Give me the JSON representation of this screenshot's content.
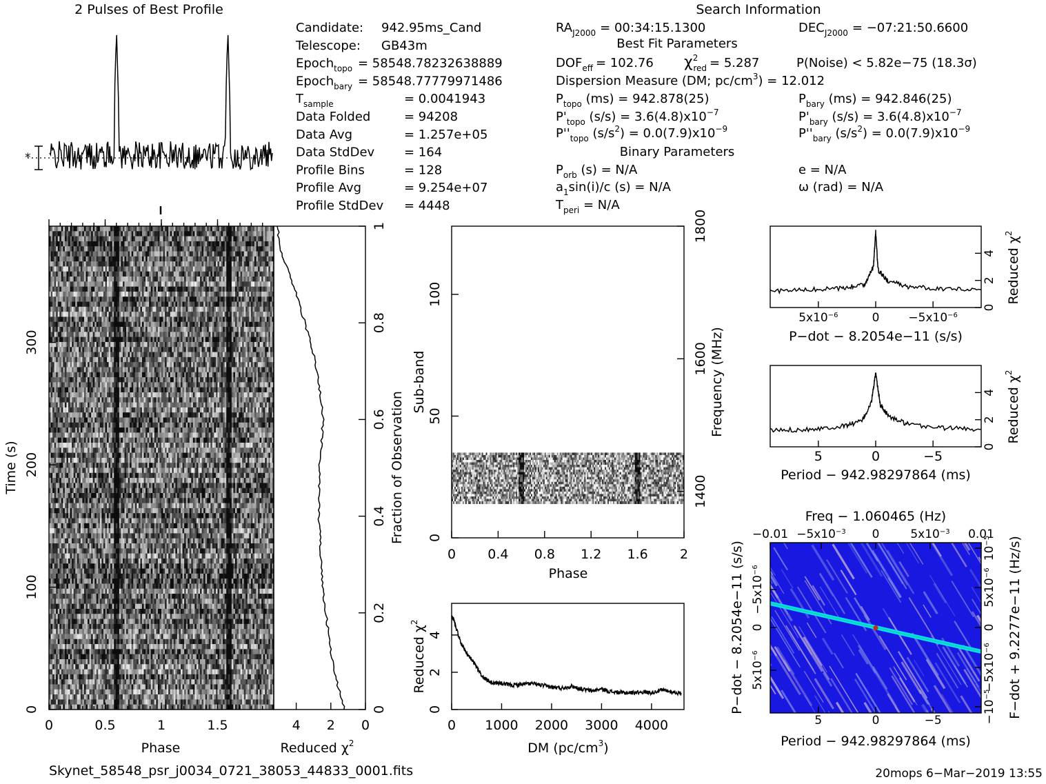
{
  "profile_panel": {
    "title": "2 Pulses of Best Profile",
    "marker_label": "*",
    "chart_data": {
      "type": "line",
      "xlabel": "",
      "ylabel": "",
      "xlim": [
        0,
        2
      ],
      "pulse_phases": [
        0.6,
        1.6
      ],
      "baseline_level": 0.0,
      "peak_level": 1.0
    }
  },
  "candidate_info": {
    "rows": [
      {
        "label": "Candidate:",
        "value": "942.95ms_Cand"
      },
      {
        "label": "Telescope:",
        "value": "GB43m"
      },
      {
        "label": "Epoch",
        "sub": "topo",
        "value": "= 58548.78232638889"
      },
      {
        "label": "Epoch",
        "sub": "bary",
        "value": "= 58548.77779971486"
      },
      {
        "label": "T",
        "sub": "sample",
        "value": "=   0.0041943"
      },
      {
        "label": "Data Folded",
        "value": "=   94208"
      },
      {
        "label": "Data Avg",
        "value": "=   1.257e+05"
      },
      {
        "label": "Data StdDev",
        "value": "=   164"
      },
      {
        "label": "Profile Bins",
        "value": "=   128"
      },
      {
        "label": "Profile Avg",
        "value": "=   9.254e+07"
      },
      {
        "label": "Profile StdDev",
        "value": "=   4448"
      }
    ]
  },
  "search_info": {
    "title": "Search Information",
    "ra": {
      "label": "RA",
      "sub": "J2000",
      "value": "= 00:34:15.1300"
    },
    "dec": {
      "label": "DEC",
      "sub": "J2000",
      "value": "= −07:21:50.6600"
    },
    "best_fit_title": "Best Fit Parameters",
    "dof": {
      "label": "DOF",
      "sub": "eff",
      "value": "= 102.76"
    },
    "chi2": {
      "label": "χ",
      "sup": "2",
      "sub": "red",
      "value": "= 5.287"
    },
    "pnoise": "P(Noise) < 5.82e−75   (18.3σ)",
    "dm": "Dispersion Measure (DM; pc/cm",
    "dm_sup": "3",
    "dm_value": ") = 12.012",
    "p_topo": {
      "label": "P",
      "sub": "topo",
      "value": " (ms) =   942.878(25)"
    },
    "p_bary": {
      "label": "P",
      "sub": "bary",
      "value": " (ms) =   942.846(25)"
    },
    "pd_topo": {
      "label": "P'",
      "sub": "topo",
      "value": " (s/s) =   3.6(4.8)x10",
      "exp": "−7"
    },
    "pd_bary": {
      "label": "P'",
      "sub": "bary",
      "value": " (s/s) =   3.6(4.8)x10",
      "exp": "−7"
    },
    "pdd_topo": {
      "label": "P''",
      "sub": "topo",
      "value": " (s/s",
      "sup2": "2",
      "value2": ") = 0.0(7.9)x10",
      "exp": "−9"
    },
    "pdd_bary": {
      "label": "P''",
      "sub": "bary",
      "value": " (s/s",
      "sup2": "2",
      "value2": ") = 0.0(7.9)x10",
      "exp": "−9"
    },
    "binary_title": "Binary Parameters",
    "porb": {
      "label": "P",
      "sub": "orb",
      "value": " (s) = N/A"
    },
    "ecc": "e = N/A",
    "a1sini": {
      "label": "a",
      "sub": "1",
      "value": "sin(i)/c (s) = N/A"
    },
    "omega": "ω (rad) = N/A",
    "tperi": {
      "label": "T",
      "sub": "peri",
      "value": " = N/A"
    }
  },
  "time_phase_panel": {
    "chart_data": {
      "type": "heatmap",
      "xlabel": "Phase",
      "ylabel": "Time (s)",
      "xlim": [
        0,
        2
      ],
      "ylim": [
        0,
        395
      ],
      "x_ticks": [
        "0",
        "0.5",
        "1",
        "1.5"
      ],
      "x_tick_values": [
        0,
        0.5,
        1,
        1.5
      ],
      "y_ticks": [
        "0",
        "100",
        "200",
        "300"
      ],
      "y_tick_values": [
        0,
        100,
        200,
        300
      ],
      "pulse_phases": [
        0.6,
        1.6
      ]
    }
  },
  "chi2_time_panel": {
    "chart_data": {
      "type": "line",
      "xlabel": "Reduced χ",
      "xlabel_sup": "2",
      "ylabel": "Fraction of Observation",
      "xlim": [
        5.3,
        0
      ],
      "ylim": [
        0,
        1
      ],
      "x_ticks": [
        "4",
        "2",
        "0"
      ],
      "x_tick_values": [
        4,
        2,
        0
      ],
      "y_ticks": [
        "0",
        "0.2",
        "0.4",
        "0.6",
        "0.8",
        "1"
      ],
      "y_tick_values": [
        0,
        0.2,
        0.4,
        0.6,
        0.8,
        1
      ],
      "fraction": [
        0,
        0.05,
        0.1,
        0.15,
        0.2,
        0.25,
        0.3,
        0.35,
        0.4,
        0.45,
        0.5,
        0.55,
        0.6,
        0.65,
        0.7,
        0.75,
        0.8,
        0.85,
        0.9,
        0.95,
        1.0
      ],
      "chi2": [
        1.2,
        1.6,
        1.9,
        2.1,
        2.3,
        2.45,
        2.55,
        2.6,
        2.7,
        2.7,
        2.65,
        2.55,
        2.45,
        2.6,
        2.8,
        3.1,
        3.5,
        3.9,
        4.4,
        4.9,
        5.1
      ]
    }
  },
  "subband_panel": {
    "chart_data": {
      "type": "heatmap",
      "xlabel": "Phase",
      "ylabel": "Sub-band",
      "y2label": "Frequency (MHz)",
      "xlim": [
        0,
        2
      ],
      "ylim": [
        0,
        128
      ],
      "x_ticks": [
        "0",
        "0.4",
        "0.8",
        "1.2",
        "1.6",
        "2"
      ],
      "x_tick_values": [
        0,
        0.4,
        0.8,
        1.2,
        1.6,
        2
      ],
      "y_ticks": [
        "0",
        "50",
        "100"
      ],
      "y_tick_values": [
        0,
        50,
        100
      ],
      "y2_ticks": [
        "1400",
        "1600",
        "1800"
      ],
      "y2_tick_values": [
        1400,
        1600,
        1800
      ],
      "y2lim": [
        1330,
        1800
      ],
      "band_range": [
        14,
        35
      ],
      "pulse_phases": [
        0.6,
        1.6
      ]
    }
  },
  "dm_panel": {
    "chart_data": {
      "type": "line",
      "xlabel": "DM (pc/cm",
      "xlabel_sup": "3",
      "xlabel_end": ")",
      "ylabel": "Reduced χ",
      "ylabel_sup": "2",
      "xlim": [
        0,
        4650
      ],
      "ylim": [
        0,
        5.7
      ],
      "x_ticks": [
        "0",
        "1000",
        "2000",
        "3000",
        "4000"
      ],
      "x_tick_values": [
        0,
        1000,
        2000,
        3000,
        4000
      ],
      "y_ticks": [
        "0",
        "2",
        "4"
      ],
      "y_tick_values": [
        0,
        2,
        4
      ],
      "x": [
        0,
        50,
        100,
        200,
        300,
        400,
        500,
        600,
        700,
        800,
        1000,
        1200,
        1400,
        1600,
        1800,
        2000,
        2200,
        2400,
        2600,
        2800,
        3000,
        3200,
        3400,
        3600,
        3800,
        4000,
        4200,
        4400,
        4600
      ],
      "y": [
        5.0,
        4.8,
        4.3,
        3.5,
        3.0,
        2.7,
        2.3,
        1.8,
        1.6,
        1.45,
        1.4,
        1.3,
        1.35,
        1.4,
        1.3,
        1.2,
        1.15,
        1.25,
        1.1,
        1.0,
        1.1,
        0.95,
        0.9,
        0.9,
        0.95,
        0.9,
        1.05,
        0.95,
        0.85
      ]
    }
  },
  "pdot_panel": {
    "chart_data": {
      "type": "line",
      "xlabel": "P−dot − 8.2054e−11 (s/s)",
      "ylabel": "Reduced χ",
      "ylabel_sup": "2",
      "xlim": [
        9.2e-06,
        -9.2e-06
      ],
      "ylim": [
        0,
        6
      ],
      "x_ticks": [
        "5x10",
        "0",
        "−5x10"
      ],
      "x_tick_exps": [
        "−6",
        "",
        "−6"
      ],
      "x_tick_values": [
        5e-06,
        0,
        -5e-06
      ],
      "y_ticks": [
        "0",
        "2",
        "4"
      ],
      "y_tick_values": [
        0,
        2,
        4
      ],
      "x": [
        9.2e-06,
        6e-06,
        3e-06,
        1e-06,
        2e-07,
        0,
        -2e-07,
        -1e-06,
        -3e-06,
        -6e-06,
        -9.2e-06
      ],
      "y": [
        1.2,
        1.3,
        1.4,
        1.7,
        3.0,
        5.6,
        2.8,
        2.0,
        1.5,
        1.4,
        1.3
      ]
    }
  },
  "period_panel": {
    "chart_data": {
      "type": "line",
      "xlabel": "Period − 942.98297864 (ms)",
      "ylabel": "Reduced χ",
      "ylabel_sup": "2",
      "xlim": [
        9.2,
        -9.2
      ],
      "ylim": [
        0,
        6
      ],
      "x_ticks": [
        "5",
        "0",
        "−5"
      ],
      "x_tick_values": [
        5,
        0,
        -5
      ],
      "y_ticks": [
        "0",
        "2",
        "4"
      ],
      "y_tick_values": [
        0,
        2,
        4
      ],
      "x": [
        9.2,
        6,
        3,
        1.2,
        0.4,
        0,
        -0.4,
        -1.2,
        -3,
        -6,
        -9.2
      ],
      "y": [
        1.2,
        1.3,
        1.5,
        1.9,
        3.2,
        5.4,
        3.1,
        2.2,
        1.6,
        1.4,
        1.3
      ]
    }
  },
  "pp_panel": {
    "chart_data": {
      "type": "heatmap",
      "title": "Freq − 1.060465 (Hz)",
      "xlabel": "Period − 942.98297864 (ms)",
      "ylabel": "P−dot − 8.2054e−11 (s/s)",
      "y2label": "F−dot + 9.2277e−11 (Hz/s)",
      "xlim": [
        9.2,
        -9.2
      ],
      "ylim": [
        9.2e-06,
        -9.2e-06
      ],
      "x_ticks": [
        "5",
        "0",
        "−5"
      ],
      "x_tick_values": [
        5,
        0,
        -5
      ],
      "top_ticks": [
        "−0.01",
        "−5x10",
        "0",
        "5x10",
        "0.01"
      ],
      "top_tick_exps": [
        "",
        "−3",
        "",
        "−3",
        ""
      ],
      "y_ticks": [
        "−5x10",
        "0",
        "5x10"
      ],
      "y_tick_exps": [
        "−6",
        "",
        "−6"
      ],
      "y2_ticks": [
        "10",
        "5x10",
        "0",
        "−5x10",
        "−10"
      ],
      "y2_tick_exps": [
        "−5",
        "−6",
        "",
        "−6",
        "−5"
      ],
      "best_x": 0,
      "best_y": 0,
      "colors": {
        "background": "#1818e0",
        "mid": "#7a86e6",
        "high": "#b9a8d8",
        "peak": "#00e0ff"
      }
    }
  },
  "footer": {
    "filename": "Skynet_58548_psr_j0034_0721_38053_44833_0001.fits",
    "stamp": "20mops   6−Mar−2019 13:55"
  }
}
